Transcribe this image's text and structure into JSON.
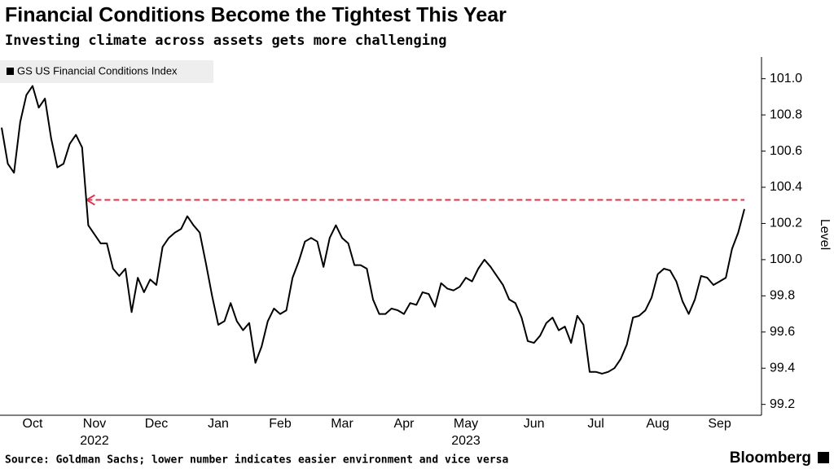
{
  "chart_data": {
    "type": "line",
    "title": "Financial Conditions Become the Tightest This Year",
    "subtitle": "Investing climate across assets gets more challenging",
    "y_label": "Level",
    "source": "Source: Goldman Sachs; lower number indicates easier environment and vice versa",
    "brand": "Bloomberg",
    "legend": "top-left",
    "categories": [
      null,
      null,
      null,
      null,
      null,
      "Oct",
      null,
      null,
      null,
      null,
      null,
      null,
      null,
      null,
      null,
      "Nov",
      null,
      null,
      null,
      null,
      null,
      null,
      null,
      null,
      null,
      "Dec",
      null,
      null,
      null,
      null,
      null,
      null,
      null,
      null,
      null,
      "Jan",
      null,
      null,
      null,
      null,
      null,
      null,
      null,
      null,
      null,
      "Feb",
      null,
      null,
      null,
      null,
      null,
      null,
      null,
      null,
      null,
      "Mar",
      null,
      null,
      null,
      null,
      null,
      null,
      null,
      null,
      null,
      "Apr",
      null,
      null,
      null,
      null,
      null,
      null,
      null,
      null,
      null,
      "May",
      null,
      null,
      null,
      null,
      null,
      null,
      null,
      null,
      null,
      null,
      "Jun",
      null,
      null,
      null,
      null,
      null,
      null,
      null,
      null,
      null,
      "Jul",
      null,
      null,
      null,
      null,
      null,
      null,
      null,
      null,
      null,
      "Aug",
      null,
      null,
      null,
      null,
      null,
      null,
      null,
      null,
      null,
      "Sep",
      null,
      null,
      null,
      null
    ],
    "category_years": [
      null,
      null,
      null,
      null,
      null,
      null,
      null,
      null,
      null,
      null,
      null,
      null,
      null,
      null,
      null,
      "2022",
      null,
      null,
      null,
      null,
      null,
      null,
      null,
      null,
      null,
      null,
      null,
      null,
      null,
      null,
      null,
      null,
      null,
      null,
      null,
      null,
      null,
      null,
      null,
      null,
      null,
      null,
      null,
      null,
      null,
      null,
      null,
      null,
      null,
      null,
      null,
      null,
      null,
      null,
      null,
      null,
      null,
      null,
      null,
      null,
      null,
      null,
      null,
      null,
      null,
      null,
      null,
      null,
      null,
      null,
      null,
      null,
      null,
      null,
      null,
      "2023",
      null,
      null,
      null,
      null,
      null,
      null,
      null,
      null,
      null,
      null,
      null,
      null,
      null,
      null,
      null,
      null,
      null,
      null,
      null,
      null,
      null,
      null,
      null,
      null,
      null,
      null,
      null,
      null,
      null,
      null,
      null,
      null,
      null,
      null,
      null,
      null,
      null,
      null,
      null,
      null,
      null,
      null,
      null,
      null,
      null
    ],
    "series": [
      {
        "name": "GS US Financial Conditions Index",
        "color": "#000000",
        "values": [
          100.73,
          100.53,
          100.48,
          100.76,
          100.91,
          100.96,
          100.84,
          100.89,
          100.67,
          100.51,
          100.53,
          100.64,
          100.69,
          100.62,
          100.19,
          100.14,
          100.09,
          100.09,
          99.95,
          99.91,
          99.95,
          99.71,
          99.9,
          99.82,
          99.89,
          99.86,
          100.07,
          100.12,
          100.15,
          100.17,
          100.24,
          100.19,
          100.15,
          99.98,
          99.8,
          99.64,
          99.66,
          99.76,
          99.66,
          99.61,
          99.65,
          99.43,
          99.52,
          99.66,
          99.73,
          99.7,
          99.72,
          99.9,
          99.99,
          100.1,
          100.12,
          100.1,
          99.96,
          100.12,
          100.19,
          100.12,
          100.09,
          99.97,
          99.97,
          99.95,
          99.78,
          99.7,
          99.7,
          99.73,
          99.72,
          99.7,
          99.76,
          99.75,
          99.82,
          99.81,
          99.74,
          99.87,
          99.84,
          99.83,
          99.85,
          99.9,
          99.88,
          99.95,
          100.0,
          99.96,
          99.91,
          99.86,
          99.78,
          99.76,
          99.68,
          99.55,
          99.54,
          99.58,
          99.65,
          99.68,
          99.61,
          99.63,
          99.54,
          99.69,
          99.64,
          99.38,
          99.38,
          99.37,
          99.38,
          99.4,
          99.45,
          99.53,
          99.68,
          99.69,
          99.72,
          99.79,
          99.92,
          99.95,
          99.94,
          99.88,
          99.77,
          99.7,
          99.78,
          99.91,
          99.9,
          99.86,
          99.88,
          99.9,
          100.06,
          100.15,
          100.28
        ]
      }
    ],
    "reference_line": {
      "value": 100.33,
      "color": "#e0334a"
    },
    "ylim": [
      99.14,
      101.12
    ],
    "yticks": [
      99.2,
      99.4,
      99.6,
      99.8,
      {
        "value": 100.0,
        "label": "100.0"
      },
      100.2,
      100.4,
      100.6,
      100.8,
      {
        "value": 101.0,
        "label": "101.0"
      }
    ],
    "grid": false
  }
}
